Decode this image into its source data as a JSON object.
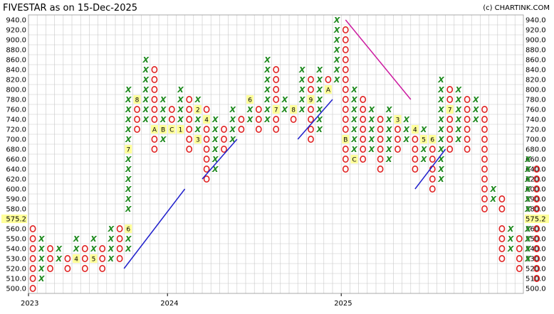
{
  "header": {
    "title": "FIVESTAR as on 15-Dec-2025",
    "credit": "(c) CHARTINK.COM"
  },
  "chart_data": {
    "type": "point-and-figure",
    "levels": [
      940,
      920,
      900,
      880,
      860,
      840,
      820,
      800,
      780,
      760,
      740,
      720,
      700,
      680,
      660,
      640,
      620,
      600,
      590,
      580,
      575.2,
      560,
      550,
      540,
      530,
      520,
      510,
      500
    ],
    "ticks": [
      "940.0",
      "920.0",
      "900.0",
      "880.0",
      "860.0",
      "840.0",
      "820.0",
      "800.0",
      "780.0",
      "760.0",
      "740.0",
      "720.0",
      "700.0",
      "680.0",
      "660.0",
      "640.0",
      "620.0",
      "600.0",
      "590.0",
      "580.0",
      "575.2",
      "560.0",
      "550.0",
      "540.0",
      "530.0",
      "520.0",
      "510.0",
      "500.0"
    ],
    "current_price": "575.2",
    "years": [
      {
        "label": "2023",
        "col": 0
      },
      {
        "label": "2024",
        "col": 16
      },
      {
        "label": "2025",
        "col": 36
      }
    ],
    "columns": [
      {
        "c": 0,
        "t": "O",
        "lo": 500,
        "hi": 560
      },
      {
        "c": 1,
        "t": "X",
        "lo": 510,
        "hi": 550
      },
      {
        "c": 2,
        "t": "O",
        "lo": 520,
        "hi": 540
      },
      {
        "c": 3,
        "t": "X",
        "lo": 530,
        "hi": 540
      },
      {
        "c": 4,
        "t": "O",
        "lo": 520,
        "hi": 530
      },
      {
        "c": 5,
        "t": "X",
        "lo": 530,
        "hi": 550
      },
      {
        "c": 6,
        "t": "O",
        "lo": 520,
        "hi": 540
      },
      {
        "c": 7,
        "t": "X",
        "lo": 530,
        "hi": 550
      },
      {
        "c": 8,
        "t": "O",
        "lo": 520,
        "hi": 540
      },
      {
        "c": 9,
        "t": "X",
        "lo": 530,
        "hi": 570
      },
      {
        "c": 10,
        "t": "O",
        "lo": 530,
        "hi": 560
      },
      {
        "c": 11,
        "t": "X",
        "lo": 540,
        "hi": 800
      },
      {
        "c": 12,
        "t": "O",
        "lo": 720,
        "hi": 780
      },
      {
        "c": 13,
        "t": "X",
        "lo": 740,
        "hi": 860
      },
      {
        "c": 14,
        "t": "O",
        "lo": 680,
        "hi": 840
      },
      {
        "c": 15,
        "t": "X",
        "lo": 700,
        "hi": 780
      },
      {
        "c": 16,
        "t": "O",
        "lo": 720,
        "hi": 760
      },
      {
        "c": 17,
        "t": "X",
        "lo": 720,
        "hi": 800
      },
      {
        "c": 18,
        "t": "O",
        "lo": 680,
        "hi": 780
      },
      {
        "c": 19,
        "t": "X",
        "lo": 700,
        "hi": 780
      },
      {
        "c": 20,
        "t": "O",
        "lo": 620,
        "hi": 760
      },
      {
        "c": 21,
        "t": "X",
        "lo": 640,
        "hi": 740
      },
      {
        "c": 22,
        "t": "O",
        "lo": 680,
        "hi": 720
      },
      {
        "c": 23,
        "t": "X",
        "lo": 700,
        "hi": 760
      },
      {
        "c": 24,
        "t": "O",
        "lo": 720,
        "hi": 740
      },
      {
        "c": 25,
        "t": "X",
        "lo": 740,
        "hi": 780
      },
      {
        "c": 26,
        "t": "O",
        "lo": 720,
        "hi": 760
      },
      {
        "c": 27,
        "t": "X",
        "lo": 740,
        "hi": 860
      },
      {
        "c": 28,
        "t": "O",
        "lo": 720,
        "hi": 840
      },
      {
        "c": 29,
        "t": "X",
        "lo": 760,
        "hi": 780
      },
      {
        "c": 30,
        "t": "O",
        "lo": 740,
        "hi": 760
      },
      {
        "c": 31,
        "t": "X",
        "lo": 760,
        "hi": 840
      },
      {
        "c": 32,
        "t": "O",
        "lo": 700,
        "hi": 820
      },
      {
        "c": 33,
        "t": "X",
        "lo": 720,
        "hi": 840
      },
      {
        "c": 34,
        "t": "O",
        "lo": 800,
        "hi": 820
      },
      {
        "c": 35,
        "t": "X",
        "lo": 820,
        "hi": 940
      },
      {
        "c": 36,
        "t": "O",
        "lo": 640,
        "hi": 920
      },
      {
        "c": 37,
        "t": "X",
        "lo": 660,
        "hi": 800
      },
      {
        "c": 38,
        "t": "O",
        "lo": 660,
        "hi": 780
      },
      {
        "c": 39,
        "t": "X",
        "lo": 680,
        "hi": 760
      },
      {
        "c": 40,
        "t": "O",
        "lo": 640,
        "hi": 740
      },
      {
        "c": 41,
        "t": "X",
        "lo": 660,
        "hi": 760
      },
      {
        "c": 42,
        "t": "O",
        "lo": 680,
        "hi": 740
      },
      {
        "c": 43,
        "t": "X",
        "lo": 700,
        "hi": 740
      },
      {
        "c": 44,
        "t": "O",
        "lo": 640,
        "hi": 720
      },
      {
        "c": 45,
        "t": "X",
        "lo": 660,
        "hi": 720
      },
      {
        "c": 46,
        "t": "O",
        "lo": 600,
        "hi": 700
      },
      {
        "c": 47,
        "t": "X",
        "lo": 620,
        "hi": 820
      },
      {
        "c": 48,
        "t": "O",
        "lo": 680,
        "hi": 800
      },
      {
        "c": 49,
        "t": "X",
        "lo": 700,
        "hi": 800
      },
      {
        "c": 50,
        "t": "O",
        "lo": 680,
        "hi": 780
      },
      {
        "c": 51,
        "t": "X",
        "lo": 740,
        "hi": 780
      },
      {
        "c": 52,
        "t": "O",
        "lo": 580,
        "hi": 760
      },
      {
        "c": 53,
        "t": "X",
        "lo": 590,
        "hi": 600
      },
      {
        "c": 54,
        "t": "O",
        "lo": 530,
        "hi": 590
      },
      {
        "c": 55,
        "t": "X",
        "lo": 540,
        "hi": 560
      },
      {
        "c": 56,
        "t": "O",
        "lo": 520,
        "hi": 550
      },
      {
        "c": 57,
        "t": "X",
        "lo": 530,
        "hi": 660
      },
      {
        "c": 58,
        "t": "O",
        "lo": 510,
        "hi": 640
      }
    ],
    "month_marks": [
      {
        "c": 11,
        "v": 680,
        "m": "7"
      },
      {
        "c": 11,
        "v": 560,
        "m": "6"
      },
      {
        "c": 12,
        "v": 780,
        "m": "8"
      },
      {
        "c": 13,
        "v": 720,
        "m": "9"
      },
      {
        "c": 14,
        "v": 720,
        "m": "A"
      },
      {
        "c": 15,
        "v": 720,
        "m": "B"
      },
      {
        "c": 16,
        "v": 720,
        "m": "C"
      },
      {
        "c": 17,
        "v": 720,
        "m": "1"
      },
      {
        "c": 19,
        "v": 760,
        "m": "2"
      },
      {
        "c": 19,
        "v": 700,
        "m": "3"
      },
      {
        "c": 20,
        "v": 740,
        "m": "4"
      },
      {
        "c": 23,
        "v": 780,
        "m": "5"
      },
      {
        "c": 25,
        "v": 780,
        "m": "6"
      },
      {
        "c": 28,
        "v": 760,
        "m": "7"
      },
      {
        "c": 30,
        "v": 760,
        "m": "8"
      },
      {
        "c": 32,
        "v": 780,
        "m": "9"
      },
      {
        "c": 34,
        "v": 800,
        "m": "A"
      },
      {
        "c": 36,
        "v": 700,
        "m": "B"
      },
      {
        "c": 37,
        "v": 660,
        "m": "C"
      },
      {
        "c": 38,
        "v": 800,
        "m": "1"
      },
      {
        "c": 40,
        "v": 760,
        "m": "2"
      },
      {
        "c": 42,
        "v": 740,
        "m": "3"
      },
      {
        "c": 44,
        "v": 720,
        "m": "4"
      },
      {
        "c": 45,
        "v": 700,
        "m": "5"
      },
      {
        "c": 46,
        "v": 700,
        "m": "6"
      },
      {
        "c": 48,
        "v": 760,
        "m": "7"
      },
      {
        "c": 49,
        "v": 590,
        "m": "8"
      },
      {
        "c": 51,
        "v": 540,
        "m": "9"
      },
      {
        "c": 52,
        "v": 550,
        "m": "A"
      },
      {
        "c": 53,
        "v": 640,
        "m": "B"
      },
      {
        "c": 53,
        "v": 580,
        "m": "C"
      },
      {
        "c": 5,
        "v": 530,
        "m": "4"
      },
      {
        "c": 7,
        "v": 530,
        "m": "5"
      }
    ],
    "trendlines": [
      {
        "color": "#2020cc",
        "from": {
          "c": 10.5,
          "v": 520
        },
        "to": {
          "c": 17.5,
          "v": 600
        }
      },
      {
        "color": "#2020cc",
        "from": {
          "c": 19.5,
          "v": 620
        },
        "to": {
          "c": 23.5,
          "v": 700
        }
      },
      {
        "color": "#2020cc",
        "from": {
          "c": 30.5,
          "v": 700
        },
        "to": {
          "c": 34.5,
          "v": 780
        }
      },
      {
        "color": "#cc1aa0",
        "from": {
          "c": 36,
          "v": 940
        },
        "to": {
          "c": 43.5,
          "v": 780
        }
      },
      {
        "color": "#2020cc",
        "from": {
          "c": 44,
          "v": 600
        },
        "to": {
          "c": 47.5,
          "v": 680
        }
      }
    ],
    "colors": {
      "x": "#1e8a1e",
      "o": "#e02020",
      "grid": "#c8c8c8",
      "price_bg": "#ffff99"
    }
  }
}
